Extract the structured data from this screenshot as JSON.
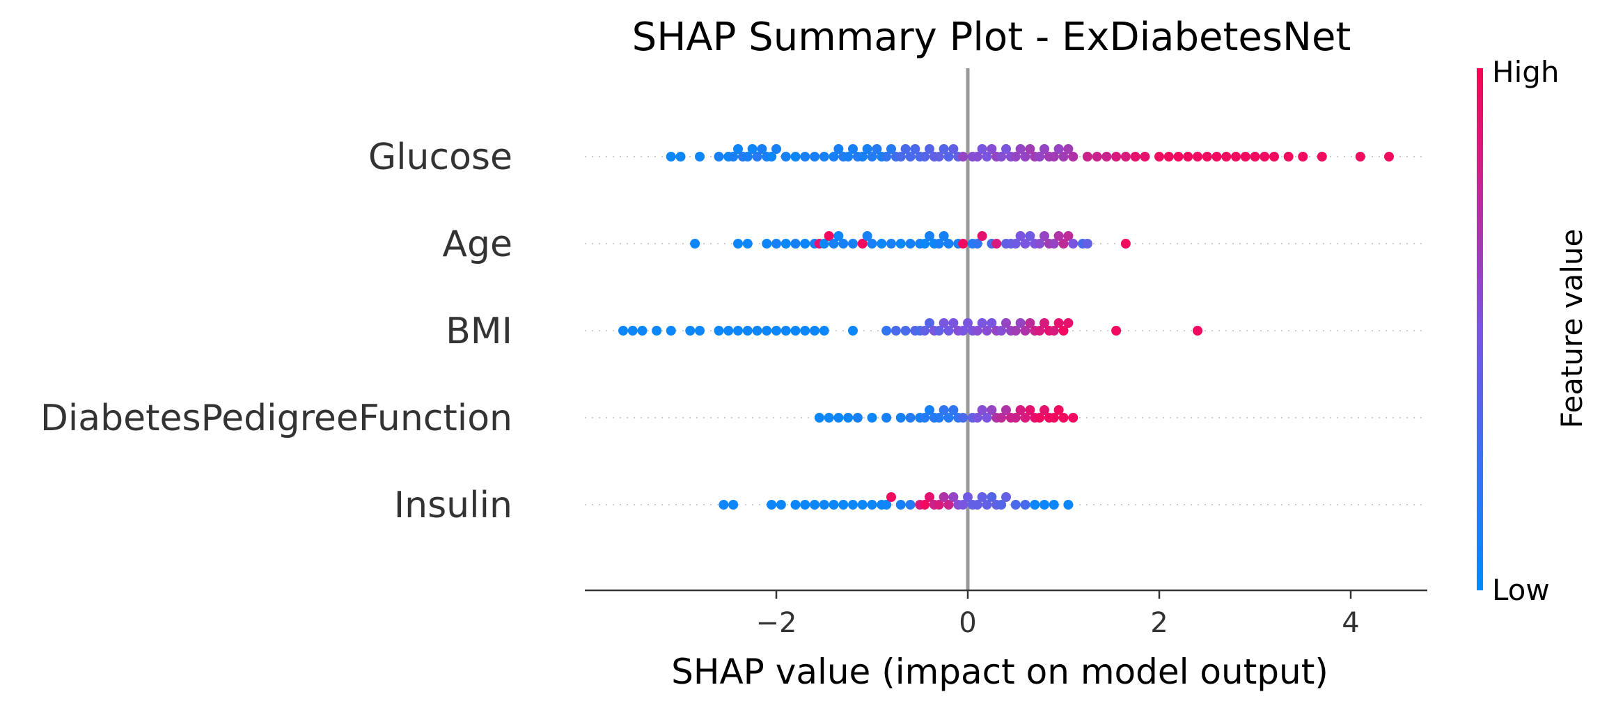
{
  "chart_data": {
    "type": "scatter",
    "subtype": "beeswarm",
    "title": "SHAP Summary Plot - ExDiabetesNet",
    "xlabel": "SHAP value (impact on model output)",
    "xlim": [
      -4.0,
      4.8
    ],
    "xticks": [
      {
        "value": -2,
        "label": "−2"
      },
      {
        "value": 0,
        "label": "0"
      },
      {
        "value": 2,
        "label": "2"
      },
      {
        "value": 4,
        "label": "4"
      }
    ],
    "zero_line": 0,
    "grid": false,
    "colorbar": {
      "label": "Feature value",
      "high_label": "High",
      "low_label": "Low",
      "low_color": "#008bfb",
      "mid_color": "#7a55e0",
      "high_color": "#ff0052"
    },
    "features": [
      {
        "name": "Glucose",
        "points": [
          [
            -3.1,
            0.05
          ],
          [
            -3.0,
            0.05
          ],
          [
            -2.8,
            0.05
          ],
          [
            -2.6,
            0.1
          ],
          [
            -2.5,
            0.05
          ],
          [
            -2.45,
            0.1
          ],
          [
            -2.4,
            0.05
          ],
          [
            -2.35,
            0.15
          ],
          [
            -2.3,
            0.1
          ],
          [
            -2.25,
            0.05
          ],
          [
            -2.2,
            0.15
          ],
          [
            -2.15,
            0.1
          ],
          [
            -2.1,
            0.1
          ],
          [
            -2.05,
            0.05
          ],
          [
            -2.0,
            0.1
          ],
          [
            -1.9,
            0.1
          ],
          [
            -1.8,
            0.05
          ],
          [
            -1.7,
            0.1
          ],
          [
            -1.6,
            0.1
          ],
          [
            -1.5,
            0.1
          ],
          [
            -1.4,
            0.1
          ],
          [
            -1.35,
            0.1
          ],
          [
            -1.3,
            0.15
          ],
          [
            -1.25,
            0.1
          ],
          [
            -1.2,
            0.1
          ],
          [
            -1.15,
            0.15
          ],
          [
            -1.1,
            0.1
          ],
          [
            -1.05,
            0.1
          ],
          [
            -1.0,
            0.15
          ],
          [
            -0.95,
            0.15
          ],
          [
            -0.9,
            0.1
          ],
          [
            -0.85,
            0.2
          ],
          [
            -0.8,
            0.15
          ],
          [
            -0.75,
            0.25
          ],
          [
            -0.7,
            0.3
          ],
          [
            -0.65,
            0.3
          ],
          [
            -0.6,
            0.3
          ],
          [
            -0.55,
            0.3
          ],
          [
            -0.5,
            0.3
          ],
          [
            -0.45,
            0.35
          ],
          [
            -0.4,
            0.35
          ],
          [
            -0.35,
            0.4
          ],
          [
            -0.3,
            0.4
          ],
          [
            -0.25,
            0.35
          ],
          [
            -0.2,
            0.35
          ],
          [
            -0.15,
            0.4
          ],
          [
            -0.1,
            0.4
          ],
          [
            -0.05,
            0.6
          ],
          [
            0.05,
            0.55
          ],
          [
            0.1,
            0.55
          ],
          [
            0.15,
            0.5
          ],
          [
            0.2,
            0.5
          ],
          [
            0.25,
            0.55
          ],
          [
            0.3,
            0.6
          ],
          [
            0.35,
            0.55
          ],
          [
            0.4,
            0.5
          ],
          [
            0.45,
            0.55
          ],
          [
            0.5,
            0.6
          ],
          [
            0.55,
            0.6
          ],
          [
            0.6,
            0.6
          ],
          [
            0.65,
            0.65
          ],
          [
            0.7,
            0.65
          ],
          [
            0.75,
            0.6
          ],
          [
            0.8,
            0.6
          ],
          [
            0.85,
            0.65
          ],
          [
            0.9,
            0.65
          ],
          [
            0.95,
            0.6
          ],
          [
            1.0,
            0.65
          ],
          [
            1.05,
            0.65
          ],
          [
            1.1,
            0.7
          ],
          [
            1.25,
            0.8
          ],
          [
            1.35,
            0.8
          ],
          [
            1.45,
            0.8
          ],
          [
            1.55,
            0.85
          ],
          [
            1.65,
            0.85
          ],
          [
            1.75,
            0.9
          ],
          [
            1.85,
            0.9
          ],
          [
            2.0,
            0.95
          ],
          [
            2.1,
            0.95
          ],
          [
            2.2,
            0.95
          ],
          [
            2.3,
            0.95
          ],
          [
            2.4,
            0.95
          ],
          [
            2.5,
            0.95
          ],
          [
            2.6,
            0.95
          ],
          [
            2.7,
            0.95
          ],
          [
            2.8,
            0.95
          ],
          [
            2.9,
            0.95
          ],
          [
            3.0,
            0.95
          ],
          [
            3.1,
            0.95
          ],
          [
            3.2,
            0.95
          ],
          [
            3.35,
            0.95
          ],
          [
            3.5,
            0.95
          ],
          [
            3.7,
            0.95
          ],
          [
            4.1,
            0.95
          ],
          [
            4.4,
            0.95
          ]
        ]
      },
      {
        "name": "Age",
        "points": [
          [
            -2.85,
            0.05
          ],
          [
            -2.4,
            0.05
          ],
          [
            -2.3,
            0.05
          ],
          [
            -2.1,
            0.05
          ],
          [
            -2.0,
            0.1
          ],
          [
            -1.9,
            0.05
          ],
          [
            -1.8,
            0.1
          ],
          [
            -1.7,
            0.05
          ],
          [
            -1.6,
            0.1
          ],
          [
            -1.55,
            0.9
          ],
          [
            -1.5,
            0.05
          ],
          [
            -1.45,
            0.95
          ],
          [
            -1.4,
            0.1
          ],
          [
            -1.35,
            0.05
          ],
          [
            -1.3,
            0.1
          ],
          [
            -1.2,
            0.1
          ],
          [
            -1.1,
            0.95
          ],
          [
            -1.05,
            0.1
          ],
          [
            -1.0,
            0.1
          ],
          [
            -0.9,
            0.05
          ],
          [
            -0.8,
            0.1
          ],
          [
            -0.7,
            0.05
          ],
          [
            -0.6,
            0.1
          ],
          [
            -0.5,
            0.1
          ],
          [
            -0.45,
            0.05
          ],
          [
            -0.4,
            0.1
          ],
          [
            -0.35,
            0.05
          ],
          [
            -0.3,
            0.1
          ],
          [
            -0.25,
            0.1
          ],
          [
            -0.2,
            0.1
          ],
          [
            -0.1,
            0.1
          ],
          [
            -0.05,
            0.95
          ],
          [
            0.05,
            0.15
          ],
          [
            0.1,
            0.2
          ],
          [
            0.15,
            0.9
          ],
          [
            0.25,
            0.3
          ],
          [
            0.3,
            0.85
          ],
          [
            0.4,
            0.4
          ],
          [
            0.45,
            0.4
          ],
          [
            0.5,
            0.45
          ],
          [
            0.55,
            0.5
          ],
          [
            0.6,
            0.5
          ],
          [
            0.65,
            0.45
          ],
          [
            0.7,
            0.5
          ],
          [
            0.75,
            0.55
          ],
          [
            0.8,
            0.6
          ],
          [
            0.85,
            0.65
          ],
          [
            0.9,
            0.6
          ],
          [
            0.95,
            0.7
          ],
          [
            1.0,
            0.75
          ],
          [
            1.05,
            0.75
          ],
          [
            1.1,
            0.5
          ],
          [
            1.2,
            0.3
          ],
          [
            1.25,
            0.4
          ],
          [
            1.65,
            0.95
          ]
        ]
      },
      {
        "name": "BMI",
        "points": [
          [
            -3.6,
            0.05
          ],
          [
            -3.5,
            0.05
          ],
          [
            -3.4,
            0.05
          ],
          [
            -3.25,
            0.05
          ],
          [
            -3.1,
            0.05
          ],
          [
            -2.9,
            0.05
          ],
          [
            -2.8,
            0.05
          ],
          [
            -2.6,
            0.05
          ],
          [
            -2.5,
            0.05
          ],
          [
            -2.4,
            0.05
          ],
          [
            -2.3,
            0.05
          ],
          [
            -2.2,
            0.05
          ],
          [
            -2.1,
            0.05
          ],
          [
            -2.0,
            0.05
          ],
          [
            -1.9,
            0.05
          ],
          [
            -1.8,
            0.05
          ],
          [
            -1.7,
            0.05
          ],
          [
            -1.6,
            0.05
          ],
          [
            -1.5,
            0.05
          ],
          [
            -1.2,
            0.05
          ],
          [
            -0.85,
            0.2
          ],
          [
            -0.75,
            0.3
          ],
          [
            -0.65,
            0.3
          ],
          [
            -0.55,
            0.35
          ],
          [
            -0.5,
            0.3
          ],
          [
            -0.45,
            0.4
          ],
          [
            -0.4,
            0.35
          ],
          [
            -0.35,
            0.5
          ],
          [
            -0.3,
            0.4
          ],
          [
            -0.25,
            0.5
          ],
          [
            -0.2,
            0.45
          ],
          [
            -0.15,
            0.5
          ],
          [
            -0.1,
            0.55
          ],
          [
            -0.05,
            0.5
          ],
          [
            0.0,
            0.5
          ],
          [
            0.05,
            0.5
          ],
          [
            0.1,
            0.55
          ],
          [
            0.15,
            0.5
          ],
          [
            0.2,
            0.55
          ],
          [
            0.25,
            0.5
          ],
          [
            0.3,
            0.6
          ],
          [
            0.35,
            0.55
          ],
          [
            0.4,
            0.6
          ],
          [
            0.45,
            0.6
          ],
          [
            0.5,
            0.65
          ],
          [
            0.55,
            0.6
          ],
          [
            0.6,
            0.7
          ],
          [
            0.65,
            0.75
          ],
          [
            0.7,
            0.8
          ],
          [
            0.75,
            0.85
          ],
          [
            0.8,
            0.85
          ],
          [
            0.85,
            0.9
          ],
          [
            0.9,
            0.85
          ],
          [
            0.95,
            0.9
          ],
          [
            1.0,
            0.95
          ],
          [
            1.05,
            0.9
          ],
          [
            1.55,
            0.95
          ],
          [
            2.4,
            0.95
          ]
        ]
      },
      {
        "name": "DiabetesPedigreeFunction",
        "points": [
          [
            -1.55,
            0.05
          ],
          [
            -1.45,
            0.05
          ],
          [
            -1.35,
            0.05
          ],
          [
            -1.25,
            0.05
          ],
          [
            -1.15,
            0.1
          ],
          [
            -1.0,
            0.05
          ],
          [
            -0.85,
            0.1
          ],
          [
            -0.7,
            0.1
          ],
          [
            -0.6,
            0.15
          ],
          [
            -0.5,
            0.1
          ],
          [
            -0.45,
            0.15
          ],
          [
            -0.4,
            0.1
          ],
          [
            -0.35,
            0.15
          ],
          [
            -0.3,
            0.15
          ],
          [
            -0.25,
            0.2
          ],
          [
            -0.2,
            0.15
          ],
          [
            -0.15,
            0.2
          ],
          [
            -0.1,
            0.2
          ],
          [
            -0.05,
            0.3
          ],
          [
            0.05,
            0.4
          ],
          [
            0.1,
            0.5
          ],
          [
            0.15,
            0.55
          ],
          [
            0.2,
            0.5
          ],
          [
            0.25,
            0.6
          ],
          [
            0.3,
            0.7
          ],
          [
            0.35,
            0.75
          ],
          [
            0.4,
            0.7
          ],
          [
            0.45,
            0.8
          ],
          [
            0.5,
            0.8
          ],
          [
            0.55,
            0.85
          ],
          [
            0.6,
            0.85
          ],
          [
            0.65,
            0.9
          ],
          [
            0.7,
            0.9
          ],
          [
            0.75,
            0.95
          ],
          [
            0.8,
            0.9
          ],
          [
            0.85,
            0.95
          ],
          [
            0.9,
            0.95
          ],
          [
            0.95,
            0.95
          ],
          [
            1.0,
            0.95
          ],
          [
            1.1,
            0.95
          ]
        ]
      },
      {
        "name": "Insulin",
        "points": [
          [
            -2.55,
            0.05
          ],
          [
            -2.45,
            0.05
          ],
          [
            -2.05,
            0.05
          ],
          [
            -1.95,
            0.05
          ],
          [
            -1.8,
            0.05
          ],
          [
            -1.7,
            0.05
          ],
          [
            -1.6,
            0.05
          ],
          [
            -1.5,
            0.05
          ],
          [
            -1.4,
            0.05
          ],
          [
            -1.3,
            0.05
          ],
          [
            -1.2,
            0.05
          ],
          [
            -1.1,
            0.05
          ],
          [
            -1.0,
            0.05
          ],
          [
            -0.9,
            0.05
          ],
          [
            -0.85,
            0.05
          ],
          [
            -0.8,
            0.95
          ],
          [
            -0.7,
            0.1
          ],
          [
            -0.6,
            0.15
          ],
          [
            -0.5,
            0.85
          ],
          [
            -0.45,
            0.95
          ],
          [
            -0.4,
            0.9
          ],
          [
            -0.35,
            0.8
          ],
          [
            -0.3,
            0.85
          ],
          [
            -0.25,
            0.7
          ],
          [
            -0.2,
            0.8
          ],
          [
            -0.15,
            0.6
          ],
          [
            -0.1,
            0.55
          ],
          [
            -0.05,
            0.5
          ],
          [
            0.0,
            0.45
          ],
          [
            0.05,
            0.4
          ],
          [
            0.1,
            0.4
          ],
          [
            0.15,
            0.4
          ],
          [
            0.2,
            0.4
          ],
          [
            0.25,
            0.35
          ],
          [
            0.3,
            0.4
          ],
          [
            0.35,
            0.35
          ],
          [
            0.4,
            0.4
          ],
          [
            0.5,
            0.3
          ],
          [
            0.6,
            0.3
          ],
          [
            0.7,
            0.05
          ],
          [
            0.8,
            0.05
          ],
          [
            0.9,
            0.05
          ],
          [
            1.05,
            0.05
          ]
        ]
      }
    ]
  }
}
